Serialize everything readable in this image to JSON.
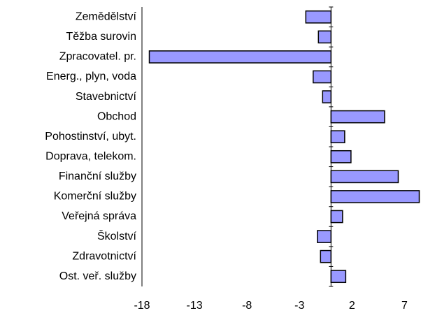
{
  "chart_data": {
    "type": "hbar",
    "categories": [
      "Zemědělství",
      "Těžba surovin",
      "Zpracovatel. pr.",
      "Energ., plyn, voda",
      "Stavebnictví",
      "Obchod",
      "Pohostinství, ubyt.",
      "Doprava, telekom.",
      "Finanční služby",
      "Komerční služby",
      "Veřejná správa",
      "Školství",
      "Zdravotnictví",
      "Ost. veř. služby"
    ],
    "values": [
      -2.4,
      -1.2,
      -17.3,
      -1.7,
      -0.8,
      5.1,
      1.3,
      1.9,
      6.4,
      8.4,
      1.1,
      -1.3,
      -1.0,
      1.4
    ],
    "color": "#9999ff",
    "xlim": [
      -18,
      8.5
    ],
    "xticks": [
      -18,
      -13,
      -8,
      -3,
      2,
      7
    ],
    "grid": false
  }
}
